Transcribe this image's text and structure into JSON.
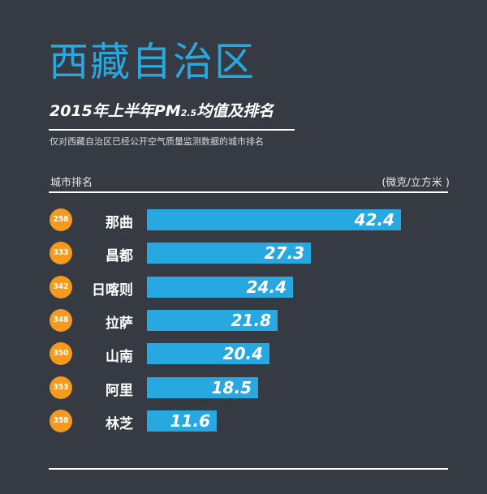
{
  "header": {
    "title": "西藏自治区",
    "subtitle_main": "2015年上半年PM",
    "subtitle_sub": "2.5",
    "subtitle_rest": "均值及排名",
    "description": "仅对西藏自治区已经公开空气质量监测数据的城市排名",
    "column_left": "城市排名",
    "column_right": "(微克/立方米 )"
  },
  "colors": {
    "background": "#353a43",
    "title": "#2aa7df",
    "bar": "#28a8e0",
    "badge": "#f39a1f",
    "text": "#ffffff"
  },
  "chart_data": {
    "type": "bar",
    "orientation": "horizontal",
    "categories": [
      "那曲",
      "昌都",
      "日喀则",
      "拉萨",
      "山南",
      "阿里",
      "林芝"
    ],
    "ranks": [
      "258",
      "333",
      "342",
      "348",
      "350",
      "353",
      "358"
    ],
    "values": [
      42.4,
      27.3,
      24.4,
      21.8,
      20.4,
      18.5,
      11.6
    ],
    "value_labels": [
      "42.4",
      "27.3",
      "24.4",
      "21.8",
      "20.4",
      "18.5",
      "11.6"
    ],
    "title": "2015年上半年PM2.5均值及排名",
    "unit": "(微克/立方米 )",
    "xlim": [
      0,
      42.4
    ]
  }
}
